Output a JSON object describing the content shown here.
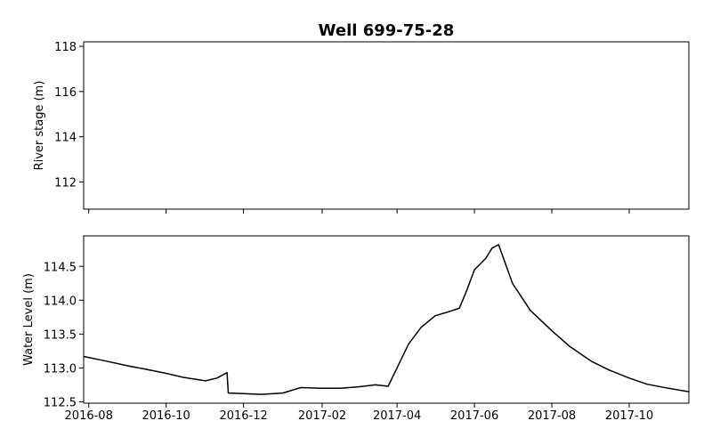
{
  "chart_data": {
    "title": "Well 699-75-28",
    "x_ticks": [
      "2016-08",
      "2016-10",
      "2016-12",
      "2017-02",
      "2017-04",
      "2017-06",
      "2017-08",
      "2017-10"
    ],
    "xlim": [
      "2016-07-28",
      "2017-11-17"
    ],
    "panels": [
      {
        "type": "line",
        "ylabel": "River stage (m)",
        "ylim": [
          110.8,
          118.2
        ],
        "y_ticks": [
          "112",
          "114",
          "116",
          "118"
        ],
        "series": [],
        "show_x_tick_labels": false
      },
      {
        "type": "line",
        "ylabel": "Water Level (m)",
        "ylim": [
          112.48,
          114.95
        ],
        "y_ticks": [
          "112.5",
          "113.0",
          "113.5",
          "114.0",
          "114.5"
        ],
        "show_x_tick_labels": true,
        "series": [
          {
            "color": "#000000",
            "x": [
              "2016-07-28",
              "2016-08-15",
              "2016-09-01",
              "2016-09-15",
              "2016-10-01",
              "2016-10-15",
              "2016-11-01",
              "2016-11-10",
              "2016-11-18",
              "2016-11-19",
              "2016-12-01",
              "2016-12-15",
              "2017-01-01",
              "2017-01-15",
              "2017-02-01",
              "2017-02-15",
              "2017-03-01",
              "2017-03-15",
              "2017-03-25",
              "2017-04-01",
              "2017-04-10",
              "2017-04-20",
              "2017-05-01",
              "2017-05-10",
              "2017-05-20",
              "2017-05-25",
              "2017-06-01",
              "2017-06-10",
              "2017-06-15",
              "2017-06-20",
              "2017-07-01",
              "2017-07-15",
              "2017-08-01",
              "2017-08-15",
              "2017-09-01",
              "2017-09-15",
              "2017-10-01",
              "2017-10-15",
              "2017-11-01",
              "2017-11-17"
            ],
            "y": [
              113.17,
              113.1,
              113.03,
              112.98,
              112.92,
              112.86,
              112.81,
              112.85,
              112.93,
              112.63,
              112.62,
              112.61,
              112.63,
              112.71,
              112.7,
              112.7,
              112.72,
              112.75,
              112.73,
              113.0,
              113.35,
              113.6,
              113.77,
              113.82,
              113.88,
              114.1,
              114.45,
              114.62,
              114.77,
              114.82,
              114.25,
              113.85,
              113.55,
              113.32,
              113.1,
              112.97,
              112.85,
              112.76,
              112.7,
              112.65
            ]
          }
        ]
      }
    ]
  }
}
